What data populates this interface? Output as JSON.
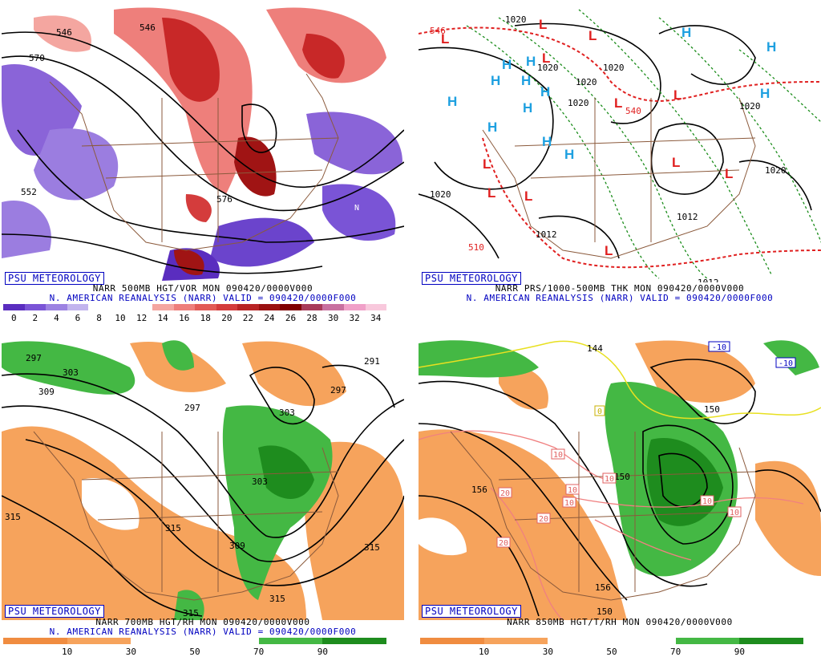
{
  "panels": [
    {
      "id": "p1",
      "psu_label": "PSU METEOROLOGY",
      "caption_line1": "NARR 500MB HGT/VOR MON 090420/0000V000",
      "caption_line2": "N. AMERICAN REANALYSIS (NARR) VALID = 090420/0000F000",
      "contour_labels": [
        "546",
        "570",
        "546",
        "552",
        "576"
      ],
      "letters": [
        "N"
      ],
      "colorbar_ticks": [
        "0",
        "2",
        "4",
        "6",
        "8",
        "10",
        "12",
        "14",
        "16",
        "18",
        "20",
        "22",
        "24",
        "26",
        "28",
        "30",
        "32",
        "34"
      ],
      "colorbar_colors": [
        "#5a2dbf",
        "#7a54d6",
        "#9c82e2",
        "#c2b4ee",
        "#ffffff",
        "#ffffff",
        "#ffffff",
        "#f4a6a0",
        "#ee7f7b",
        "#e25a55",
        "#d43c3c",
        "#b82424",
        "#9a1010",
        "#800000",
        "#a83a5a",
        "#c870a0",
        "#f0a0c8",
        "#f8c8dc"
      ]
    },
    {
      "id": "p2",
      "psu_label": "PSU METEOROLOGY",
      "caption_line1": "NARR PRS/1000-500MB THK MON 090420/0000V000",
      "caption_line2": "N. AMERICAN REANALYSIS (NARR) VALID = 090420/0000F000",
      "contour_labels": [
        "1020",
        "1020",
        "1020",
        "1020",
        "1020",
        "1020",
        "1020",
        "1012",
        "1012",
        "1012",
        "1020",
        "546",
        "540",
        "510"
      ],
      "highs": [
        "H",
        "H",
        "H",
        "H",
        "H",
        "H",
        "H",
        "H",
        "H",
        "H",
        "H",
        "H",
        "H"
      ],
      "lows": [
        "L",
        "L",
        "L",
        "L",
        "L",
        "L",
        "L",
        "L",
        "L",
        "L",
        "L",
        "L"
      ]
    },
    {
      "id": "p3",
      "psu_label": "PSU METEOROLOGY",
      "caption_line1": "NARR 700MB HGT/RH MON 090420/0000V000",
      "caption_line2": "N. AMERICAN REANALYSIS (NARR) VALID = 090420/0000F000",
      "contour_labels": [
        "297",
        "303",
        "309",
        "291",
        "297",
        "303",
        "297",
        "303",
        "315",
        "315",
        "309",
        "315",
        "315",
        "315"
      ],
      "colorbar_ticks": [
        "10",
        "30",
        "50",
        "70",
        "90"
      ],
      "colorbar_colors": [
        "#f08c40",
        "#f6a35c",
        "#ffffff",
        "#ffffff",
        "#44b844",
        "#1e8c1e"
      ]
    },
    {
      "id": "p4",
      "psu_label": "PSU METEOROLOGY",
      "caption_line1": "NARR 850MB HGT/T/RH MON 090420/0000V000",
      "caption_line2": "",
      "contour_labels": [
        "144",
        "150",
        "150",
        "156",
        "156",
        "150"
      ],
      "temp_boxes": [
        "-10",
        "-10",
        "0",
        "10",
        "10",
        "10",
        "10",
        "20",
        "20",
        "20",
        "10",
        "10"
      ],
      "colorbar_ticks": [
        "10",
        "30",
        "50",
        "70",
        "90"
      ],
      "colorbar_colors": [
        "#f08c40",
        "#f6a35c",
        "#ffffff",
        "#ffffff",
        "#44b844",
        "#1e8c1e"
      ]
    }
  ]
}
